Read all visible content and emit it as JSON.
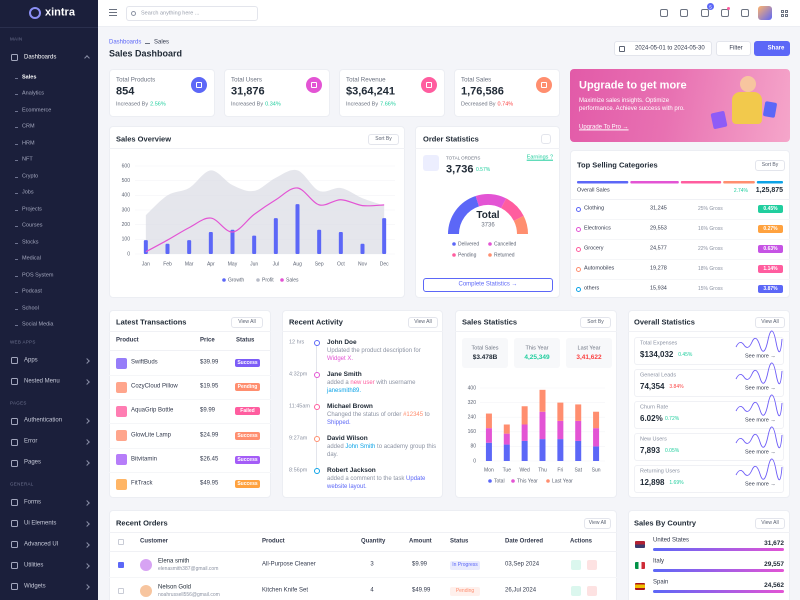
{
  "topbar": {
    "brand": "xintra",
    "search_placeholder": "Search anything here ...",
    "cart_badge": "5"
  },
  "sidebar": {
    "sections": [
      {
        "title": "MAIN",
        "items": [
          {
            "label": "Dashboards",
            "children": [
              "Sales",
              "Analytics",
              "Ecommerce",
              "CRM",
              "HRM",
              "NFT",
              "Crypto",
              "Jobs",
              "Projects",
              "Courses",
              "Stocks",
              "Medical",
              "POS System",
              "Podcast",
              "School",
              "Social Media"
            ]
          }
        ]
      },
      {
        "title": "WEB APPS",
        "items": [
          {
            "label": "Apps"
          },
          {
            "label": "Nested Menu"
          }
        ]
      },
      {
        "title": "PAGES",
        "items": [
          {
            "label": "Authentication"
          },
          {
            "label": "Error"
          },
          {
            "label": "Pages"
          }
        ]
      },
      {
        "title": "GENERAL",
        "items": [
          {
            "label": "Forms"
          },
          {
            "label": "Ui Elements"
          },
          {
            "label": "Advanced UI"
          },
          {
            "label": "Utilities"
          },
          {
            "label": "Widgets"
          }
        ]
      }
    ]
  },
  "header": {
    "breadcrumb": [
      "Dashboards",
      "Sales"
    ],
    "title": "Sales Dashboard",
    "date_range": "2024-05-01 to 2024-05-30",
    "filter": "Filter",
    "share": "Share"
  },
  "stats": [
    {
      "label": "Total Products",
      "value": "854",
      "change_text": "Increased By",
      "change": "2.56%",
      "trend": "up",
      "color": "#5c67f7"
    },
    {
      "label": "Total Users",
      "value": "31,876",
      "change_text": "Increased By",
      "change": "0.34%",
      "trend": "up",
      "color": "#e354d4"
    },
    {
      "label": "Total Revenue",
      "value": "$3,64,241",
      "change_text": "Increased By",
      "change": "7.66%",
      "trend": "up",
      "color": "#ff5d9f"
    },
    {
      "label": "Total Sales",
      "value": "1,76,586",
      "change_text": "Decreased By",
      "change": "0.74%",
      "trend": "down",
      "color": "#ff8e6f"
    }
  ],
  "upgrade": {
    "title": "Upgrade to get more",
    "text": "Maximize sales insights. Optimize performance. Achieve success with pro.",
    "link": "Upgrade To Pro →"
  },
  "sales_overview": {
    "type": "bar",
    "title": "Sales Overview",
    "sort": "Sort By",
    "categories": [
      "Jan",
      "Feb",
      "Mar",
      "Apr",
      "May",
      "Jun",
      "Jul",
      "Aug",
      "Sep",
      "Oct",
      "Nov",
      "Dec"
    ],
    "ylim": [
      0,
      600
    ],
    "yticks": [
      0,
      100,
      200,
      300,
      400,
      500,
      600
    ],
    "grid": true,
    "series": [
      {
        "name": "Growth",
        "type": "bar",
        "color": "#5c67f7",
        "values": [
          95,
          70,
          95,
          150,
          165,
          125,
          245,
          340,
          165,
          150,
          70,
          245
        ]
      },
      {
        "name": "Profit",
        "type": "area",
        "color": "#dcdee5",
        "values": [
          265,
          400,
          450,
          570,
          470,
          430,
          520,
          570,
          430,
          450,
          380,
          330
        ]
      },
      {
        "name": "Sales",
        "type": "line",
        "color": "#e354d4",
        "values": [
          15,
          95,
          180,
          245,
          150,
          270,
          370,
          450,
          335,
          370,
          330,
          335
        ]
      }
    ]
  },
  "order_statistics": {
    "type": "donut",
    "title": "Order Statistics",
    "total_label": "TOTAL ORDERS",
    "total": "3,736",
    "change": "0.57%",
    "earnings": "Earnings ?",
    "center_label": "Total",
    "center_value": "3736",
    "segments": [
      {
        "name": "Delivered",
        "color": "#5c67f7",
        "value": 40
      },
      {
        "name": "Cancelled",
        "color": "#e354d4",
        "value": 25
      },
      {
        "name": "Pending",
        "color": "#ff5d9f",
        "value": 20
      },
      {
        "name": "Returned",
        "color": "#ff8e6f",
        "value": 15
      }
    ],
    "button": "Complete Statistics →"
  },
  "top_categories": {
    "title": "Top Selling Categories",
    "sort": "Sort By",
    "overall_label": "Overall Sales",
    "overall_change": "2.74%",
    "overall_value": "1,25,875",
    "rows": [
      {
        "name": "Clothing",
        "value": 31245,
        "value_label": "31,245",
        "gross": "25% Gross",
        "change": "0.45%",
        "color": "#5c67f7",
        "badge_color": "#21ce9e"
      },
      {
        "name": "Electronics",
        "value": 29553,
        "value_label": "29,553",
        "gross": "16% Gross",
        "change": "0.27%",
        "color": "#e354d4",
        "badge_color": "#ffa23f"
      },
      {
        "name": "Grocery",
        "value": 24577,
        "value_label": "24,577",
        "gross": "22% Gross",
        "change": "0.63%",
        "color": "#ff5d9f",
        "badge_color": "#c653e4"
      },
      {
        "name": "Automobiles",
        "value": 19278,
        "value_label": "19,278",
        "gross": "18% Gross",
        "change": "1.14%",
        "color": "#ff8e6f",
        "badge_color": "#ff5d9f"
      },
      {
        "name": "others",
        "value": 15934,
        "value_label": "15,934",
        "gross": "15% Gross",
        "change": "3.87%",
        "color": "#0ca3e7",
        "badge_color": "#5c67f7"
      }
    ]
  },
  "transactions": {
    "title": "Latest Transactions",
    "view_all": "View All",
    "columns": [
      "Product",
      "Price",
      "Status"
    ],
    "rows": [
      {
        "product": "SwiftBuds",
        "price": "$39.99",
        "status": "Success",
        "color": "#7c5cf7"
      },
      {
        "product": "CozyCloud Pillow",
        "price": "$19.95",
        "status": "Pending",
        "color": "#ff8e6f"
      },
      {
        "product": "AquaGrip Bottle",
        "price": "$9.99",
        "status": "Failed",
        "color": "#ff5d9f"
      },
      {
        "product": "GlowLite Lamp",
        "price": "$24.99",
        "status": "Success",
        "color": "#ff8e6f"
      },
      {
        "product": "Bitvitamin",
        "price": "$26.45",
        "status": "Success",
        "color": "#a45cf7"
      },
      {
        "product": "FitTrack",
        "price": "$49.95",
        "status": "Success",
        "color": "#ffa23f"
      }
    ]
  },
  "activity": {
    "title": "Recent Activity",
    "view_all": "View All",
    "items": [
      {
        "time": "12 hrs",
        "name": "John Doe",
        "text": [
          "Updated the product description for ",
          "Widget X."
        ]
      },
      {
        "time": "4:32pm",
        "name": "Jane Smith",
        "text": [
          "added a ",
          "new user",
          " with username ",
          "janesmith89."
        ]
      },
      {
        "time": "11:45am",
        "name": "Michael Brown",
        "text": [
          "Changed the status of order ",
          "#12345",
          " to ",
          "Shipped."
        ]
      },
      {
        "time": "9:27am",
        "name": "David Wilson",
        "text": [
          "added ",
          "John Smith",
          " to academy group this day."
        ]
      },
      {
        "time": "8:56pm",
        "name": "Robert Jackson",
        "text": [
          "added a comment to the task ",
          "Update website layout."
        ]
      }
    ]
  },
  "sales_statistics": {
    "type": "stacked-bar",
    "title": "Sales Statistics",
    "sort": "Sort By",
    "summary": [
      {
        "label": "Total Sales",
        "value": "$3.478B",
        "color": "#212b37"
      },
      {
        "label": "This Year",
        "value": "4,25,349",
        "color": "#21ce9e"
      },
      {
        "label": "Last Year",
        "value": "3,41,622",
        "color": "#fb4242"
      }
    ],
    "categories": [
      "Mon",
      "Tue",
      "Wed",
      "Thu",
      "Fri",
      "Sat",
      "Sun"
    ],
    "ylim": [
      0,
      400
    ],
    "yticks": [
      0,
      80,
      160,
      240,
      320,
      400
    ],
    "series": [
      {
        "name": "Total",
        "color": "#5c67f7",
        "values": [
          100,
          90,
          110,
          120,
          120,
          110,
          80
        ]
      },
      {
        "name": "This Year",
        "color": "#e354d4",
        "values": [
          80,
          60,
          90,
          150,
          100,
          110,
          100
        ]
      },
      {
        "name": "Last Year",
        "color": "#ff8e6f",
        "values": [
          80,
          50,
          100,
          120,
          100,
          90,
          90
        ]
      }
    ]
  },
  "overall_statistics": {
    "title": "Overall Statistics",
    "view_all": "View All",
    "see_more": "See more →",
    "rows": [
      {
        "label": "Total Expenses",
        "value": "$134,032",
        "change": "0.45%",
        "trend": "up"
      },
      {
        "label": "General Leads",
        "value": "74,354",
        "change": "3.84%",
        "trend": "down"
      },
      {
        "label": "Churn Rate",
        "value": "6.02%",
        "change": "0.72%",
        "trend": "up"
      },
      {
        "label": "New Users",
        "value": "7,893",
        "change": "0.05%",
        "trend": "up"
      },
      {
        "label": "Returning Users",
        "value": "12,898",
        "change": "1.69%",
        "trend": "up"
      }
    ]
  },
  "recent_orders": {
    "title": "Recent Orders",
    "view_all": "View All",
    "columns": [
      "Customer",
      "Product",
      "Quantity",
      "Amount",
      "Status",
      "Date Ordered",
      "Actions"
    ],
    "rows": [
      {
        "name": "Elena smith",
        "email": "elenasmith387@gmail.com",
        "product": "All-Purpose Cleaner",
        "quantity": "3",
        "amount": "$9.99",
        "status": "In Progress",
        "status_color": "#5c67f7",
        "date": "03,Sep 2024",
        "checked": true
      },
      {
        "name": "Nelson Gold",
        "email": "noahrussell556@gmail.com",
        "product": "Kitchen Knife Set",
        "quantity": "4",
        "amount": "$49.99",
        "status": "Pending",
        "status_color": "#ff8e6f",
        "date": "26,Jul 2024",
        "checked": false
      }
    ]
  },
  "sales_by_country": {
    "title": "Sales By Country",
    "view_all": "View All",
    "rows": [
      {
        "country": "United States",
        "value": "31,672"
      },
      {
        "country": "Italy",
        "value": "29,557"
      },
      {
        "country": "Spain",
        "value": "24,562"
      }
    ]
  }
}
